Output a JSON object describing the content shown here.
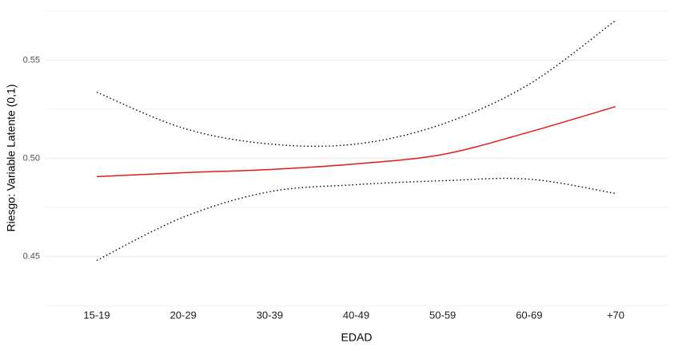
{
  "chart_data": {
    "type": "line",
    "x_label": "EDAD",
    "y_label": "Riesgo: Variable Latente (0,1)",
    "categories": [
      "15-19",
      "20-29",
      "30-39",
      "40-49",
      "50-59",
      "60-69",
      "+70"
    ],
    "series": [
      {
        "color": "#e31a1c",
        "linestyle": "solid",
        "values": [
          0.4907,
          0.4927,
          0.4943,
          0.4972,
          0.502,
          0.5134,
          0.5264
        ]
      },
      {
        "color": "#000000",
        "linestyle": "dotted",
        "values": [
          0.5337,
          0.5154,
          0.5073,
          0.5073,
          0.5175,
          0.5378,
          0.5703
        ]
      },
      {
        "color": "#000000",
        "linestyle": "dotted",
        "values": [
          0.448,
          0.47,
          0.483,
          0.4866,
          0.4886,
          0.4894,
          0.4821
        ]
      }
    ],
    "ylim": [
      0.425,
      0.575
    ],
    "yticks": [
      0.45,
      {
        "value": 0.5,
        "label": "0.50"
      },
      0.55
    ],
    "minor_yticks": [
      0.425,
      0.475,
      0.525,
      0.575
    ],
    "grid": true
  }
}
